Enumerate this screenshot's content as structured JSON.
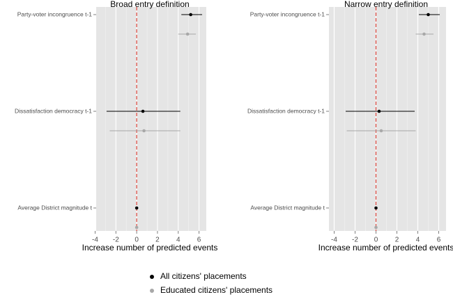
{
  "chart_data": {
    "type": "dot-whisker",
    "series": [
      {
        "name": "All citizens' placements",
        "color": "#000000"
      },
      {
        "name": "Educated citizens' placements",
        "color": "#a8a8a8"
      }
    ],
    "refline": 0,
    "refline_color": "#e0463c",
    "grid": true,
    "panels": [
      {
        "title": "Broad entry definition",
        "xlabel": "Increase number of predicted events",
        "categories": [
          "Party-voter incongruence t-1",
          "Dissatisfaction democracy t-1",
          "Average District magnitude t"
        ],
        "xlim": [
          -3.9,
          6.7
        ],
        "xticks": [
          -4,
          -2,
          0,
          2,
          4,
          6
        ],
        "series": [
          {
            "values": [
              5.2,
              0.6,
              0
            ],
            "lower": [
              4.3,
              -2.9,
              -0.05
            ],
            "upper": [
              6.3,
              4.2,
              0.05
            ]
          },
          {
            "values": [
              4.9,
              0.7,
              0
            ],
            "lower": [
              4.0,
              -2.6,
              -0.05
            ],
            "upper": [
              5.7,
              4.2,
              0.05
            ]
          }
        ]
      },
      {
        "title": "Narrow entry definition",
        "xlabel": "Increase number of predicted events",
        "categories": [
          "Party-voter incongruence t-1",
          "Dissatisfaction democracy t-1",
          "Average District magnitude t"
        ],
        "xlim": [
          -4.5,
          6.7
        ],
        "xticks": [
          -4,
          -2,
          0,
          2,
          4,
          6
        ],
        "series": [
          {
            "values": [
              5.0,
              0.3,
              0
            ],
            "lower": [
              4.1,
              -2.9,
              -0.05
            ],
            "upper": [
              6.1,
              3.7,
              0.05
            ]
          },
          {
            "values": [
              4.6,
              0.5,
              0
            ],
            "lower": [
              3.8,
              -2.8,
              -0.05
            ],
            "upper": [
              5.5,
              3.8,
              0.05
            ]
          }
        ]
      }
    ]
  }
}
